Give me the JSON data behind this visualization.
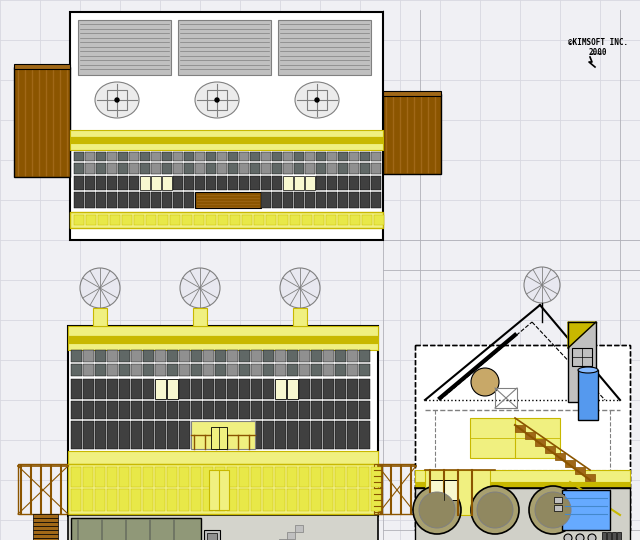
{
  "bg_color": "#f0f0f4",
  "grid_color": "#d8d8e0",
  "yellow_light": "#f0f080",
  "yellow_dark": "#c8b800",
  "yellow_fill": "#e8e850",
  "brown_dark": "#8B5500",
  "brown_med": "#A06818",
  "gray_panel": "#606060",
  "gray_hatch": "#909090",
  "gray_light": "#c0c0c0",
  "gray_medium": "#808080",
  "gray_dark": "#505050",
  "solar_dark": "#404040",
  "solar_med": "#606866",
  "black": "#000000",
  "white": "#ffffff",
  "blue_bright": "#5599ee",
  "blue_light": "#88bbee",
  "blue_water": "#66aaff",
  "tan_color": "#a8a070",
  "tan_dark": "#908860",
  "olive_gray": "#909878",
  "cream": "#f8f8d0",
  "lt_gray_bg": "#d8d8d0",
  "copyright_text": "©KIMSOFT INC.\n2000"
}
